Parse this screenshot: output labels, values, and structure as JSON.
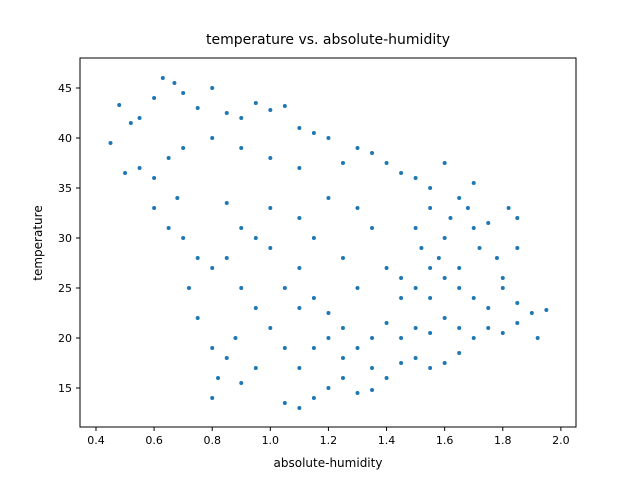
{
  "chart_data": {
    "type": "scatter",
    "title": "temperature vs. absolute-humidity",
    "x_label": "absolute-humidity",
    "y_label": "temperature",
    "xlim": [
      0.345,
      2.052
    ],
    "ylim": [
      11.1,
      48
    ],
    "xticks": [
      0.4,
      0.6,
      0.8,
      {
        "value": 1,
        "label": "1.0"
      },
      1.2,
      1.4,
      1.6,
      1.8,
      {
        "value": 2,
        "label": "2.0"
      }
    ],
    "yticks": [
      15,
      20,
      25,
      30,
      35,
      40,
      45
    ],
    "grid": false,
    "series": [
      {
        "color": "#1f77b4",
        "x": [
          0.45,
          0.48,
          0.52,
          0.55,
          0.6,
          0.63,
          0.67,
          0.7,
          0.75,
          0.8,
          0.85,
          0.9,
          0.95,
          1.0,
          1.05,
          1.1,
          1.15,
          1.2,
          1.3,
          1.35,
          1.4,
          1.45,
          1.5,
          1.55,
          1.6,
          1.25,
          1.1,
          1.0,
          0.9,
          0.8,
          0.7,
          0.65,
          0.6,
          0.55,
          0.5,
          0.6,
          0.65,
          0.7,
          0.75,
          0.8,
          0.72,
          0.75,
          0.68,
          0.85,
          0.9,
          0.95,
          1.0,
          0.85,
          0.9,
          0.95,
          0.88,
          0.8,
          0.85,
          0.82,
          0.8,
          0.9,
          0.95,
          1.0,
          1.05,
          1.1,
          1.0,
          1.1,
          1.15,
          1.2,
          1.3,
          1.35,
          1.25,
          1.3,
          1.4,
          1.45,
          1.1,
          1.05,
          1.1,
          1.15,
          1.2,
          1.25,
          1.3,
          1.35,
          1.4,
          1.45,
          1.5,
          1.55,
          1.6,
          1.65,
          1.1,
          1.15,
          1.2,
          1.25,
          1.3,
          1.35,
          1.4,
          1.45,
          1.5,
          1.55,
          1.6,
          1.65,
          1.7,
          1.75,
          1.8,
          1.85,
          1.9,
          1.95,
          1.92,
          1.85,
          1.8,
          1.75,
          1.7,
          1.65,
          1.6,
          1.55,
          1.5,
          1.45,
          1.2,
          1.15,
          1.25,
          1.35,
          1.05,
          1.5,
          1.52,
          1.55,
          1.58,
          1.6,
          1.62,
          1.65,
          1.68,
          1.7,
          1.72,
          1.75,
          1.78,
          1.8,
          1.55,
          1.65,
          1.7,
          1.82,
          1.85,
          1.85
        ],
        "values": [
          39.5,
          43.3,
          41.5,
          42,
          44,
          46,
          45.5,
          44.5,
          43,
          45,
          42.5,
          42,
          43.5,
          42.8,
          43.2,
          41,
          40.5,
          40,
          39,
          38.5,
          37.5,
          36.5,
          36,
          35,
          37.5,
          37.5,
          37,
          38,
          39,
          40,
          39,
          38,
          36,
          37,
          36.5,
          33,
          31,
          30,
          28,
          27,
          25,
          22,
          34,
          33.5,
          31,
          30,
          29,
          28,
          25,
          23,
          20,
          19,
          18,
          16,
          14,
          15.5,
          17,
          21,
          25,
          27,
          33,
          32,
          30,
          34,
          33,
          31,
          28,
          25,
          27,
          24,
          23,
          13.5,
          13,
          14,
          15,
          16,
          14.5,
          14.8,
          16,
          17.5,
          18,
          17,
          17.5,
          18.5,
          17,
          19,
          20,
          21,
          19,
          20,
          21.5,
          20,
          21,
          20.5,
          22,
          21,
          20,
          21,
          20.5,
          21.5,
          22.5,
          22.8,
          20,
          23.5,
          25,
          23,
          24,
          25,
          26,
          24,
          25,
          26,
          22.5,
          24,
          18,
          17,
          19,
          31,
          29,
          33,
          28,
          30,
          32,
          34,
          33,
          31,
          29,
          31.5,
          28,
          26,
          27,
          27,
          35.5,
          33,
          32,
          29
        ]
      }
    ]
  }
}
